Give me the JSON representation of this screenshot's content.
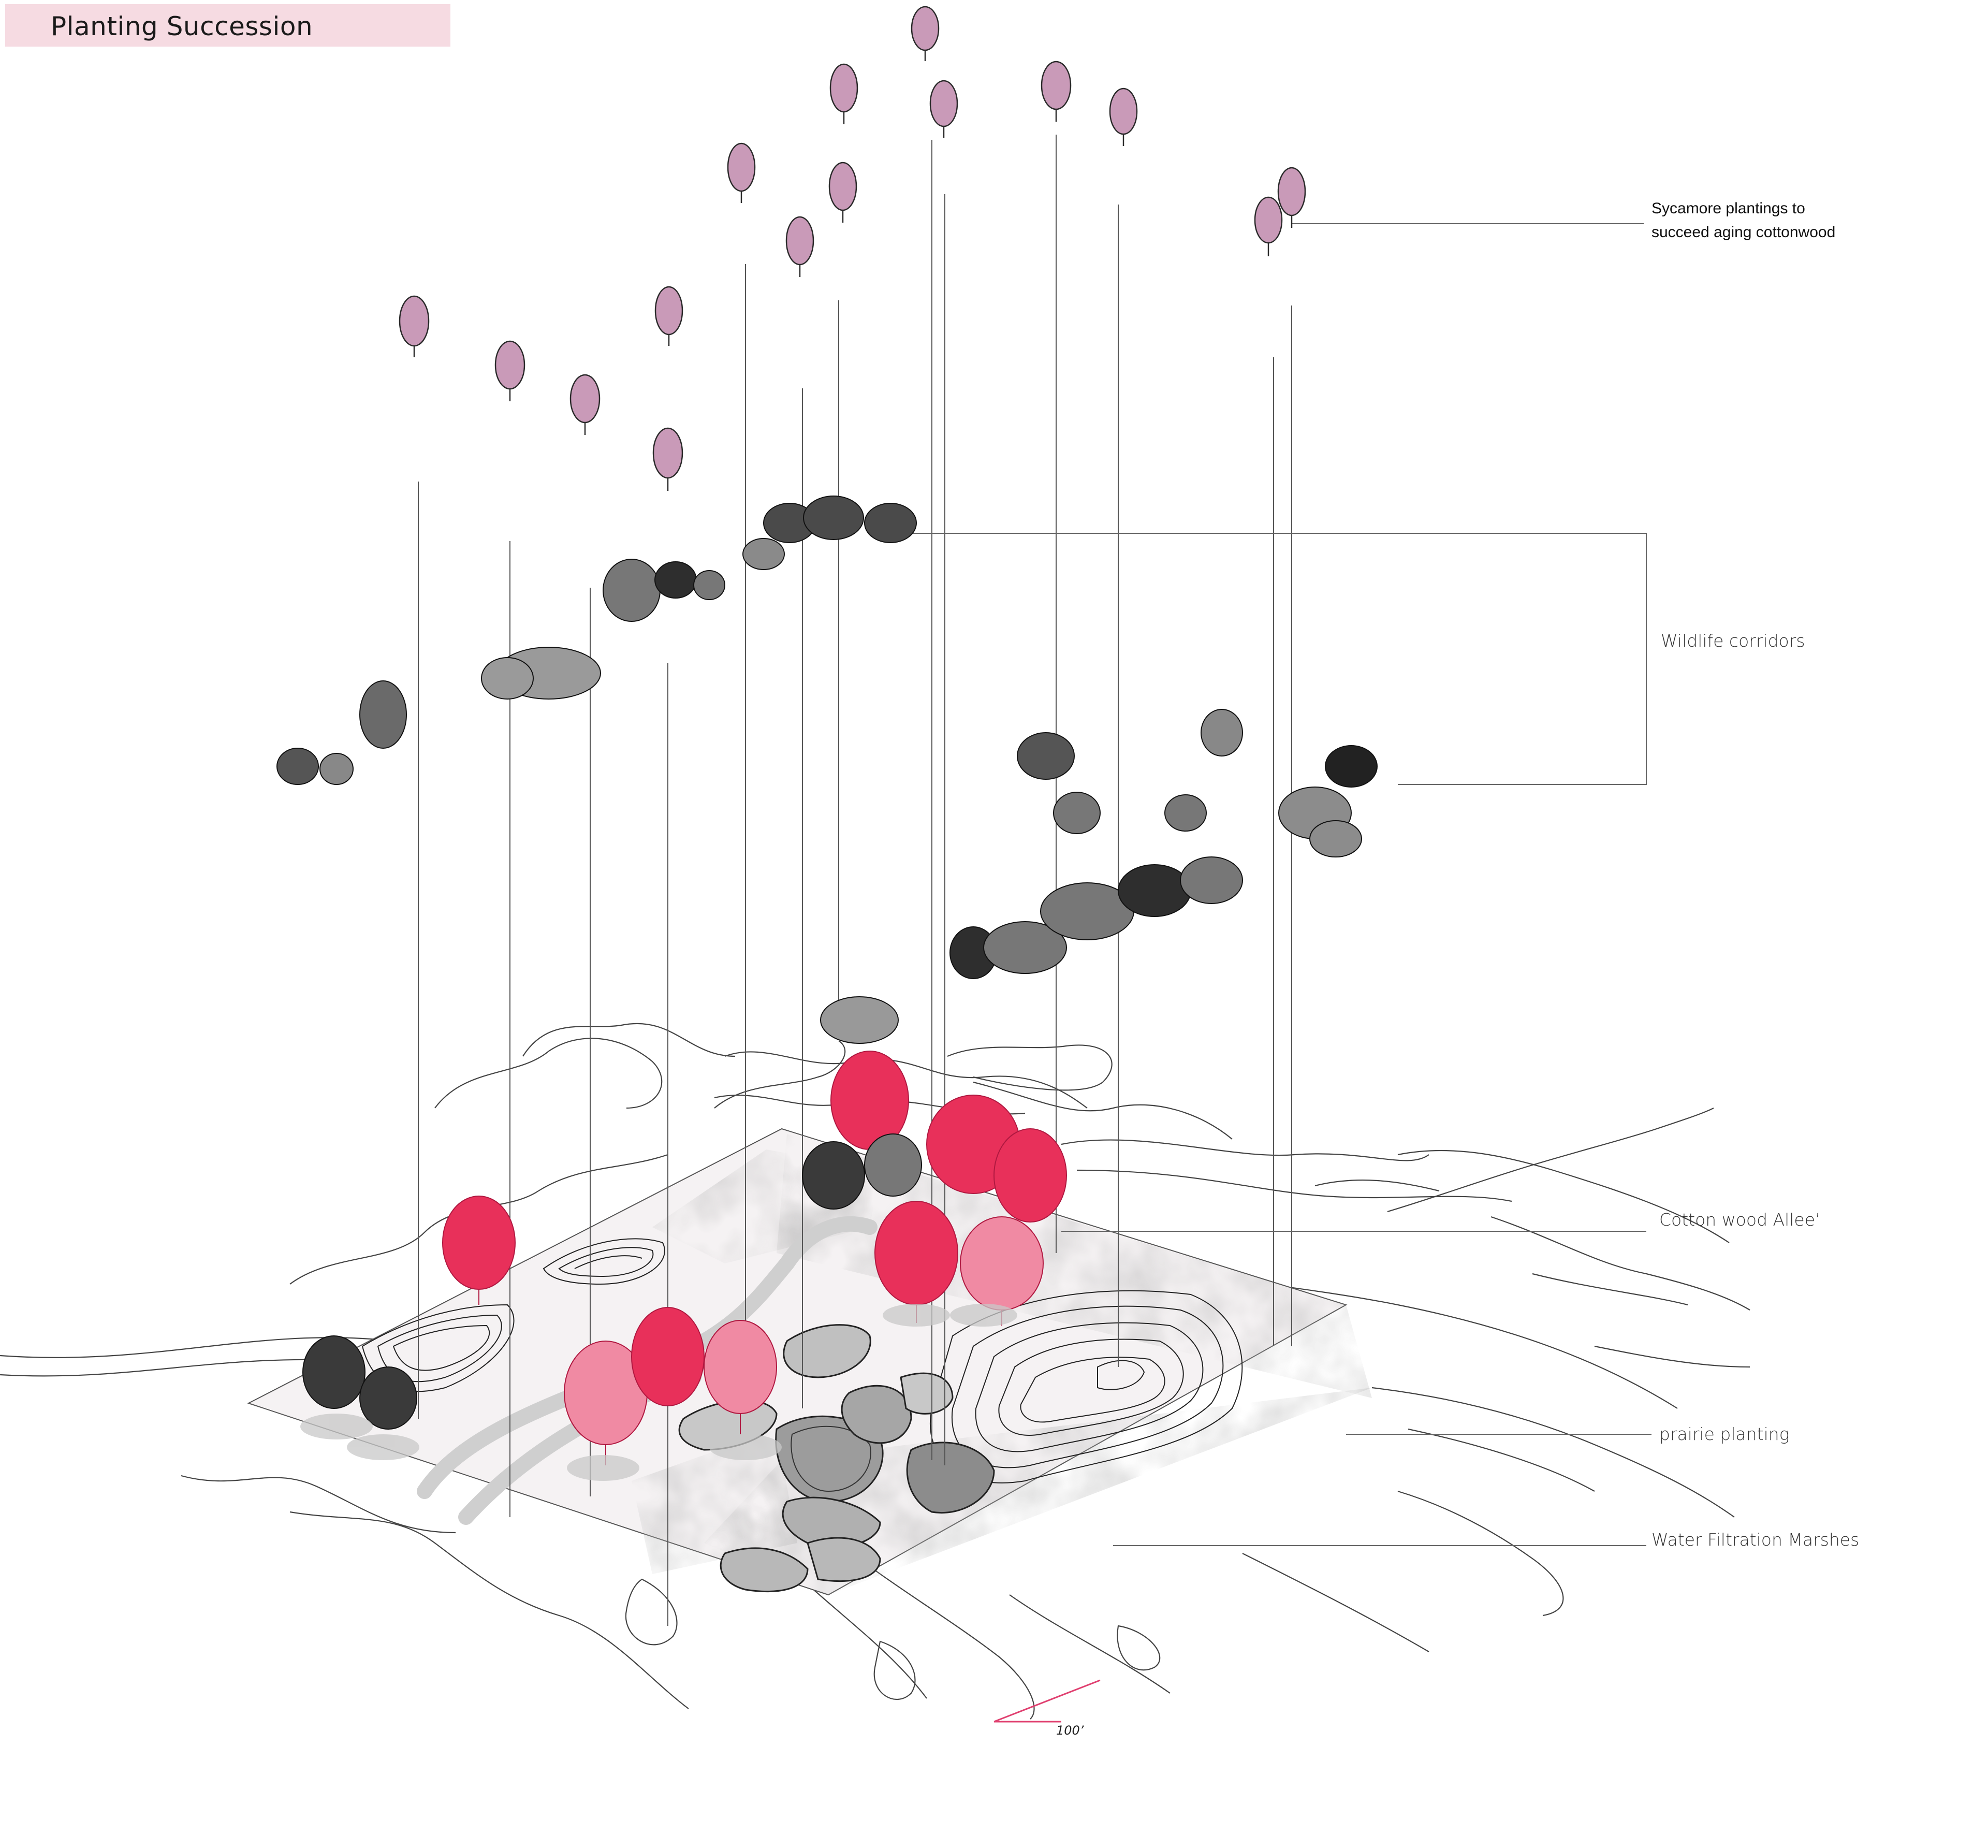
{
  "title": "Planting Succession",
  "labels": {
    "sycamore_line1": "Sycamore plantings to",
    "sycamore_line2": "succeed aging cottonwood",
    "wildlife": "Wildlife corridors",
    "cotton": "Cotton wood Allee’",
    "prairie": "prairie planting",
    "water": "Water Filtration Marshes"
  },
  "scale_label": "100’",
  "colors": {
    "title_bar": "#f6dbe2",
    "sycamore_tree": "#c99ab8",
    "cottonwood_tree": "#e8305a",
    "cottonwood_light": "#f08aa3",
    "wildlife_tree": "#3a3a3a",
    "line": "#555555",
    "scale_line": "#e04070"
  }
}
